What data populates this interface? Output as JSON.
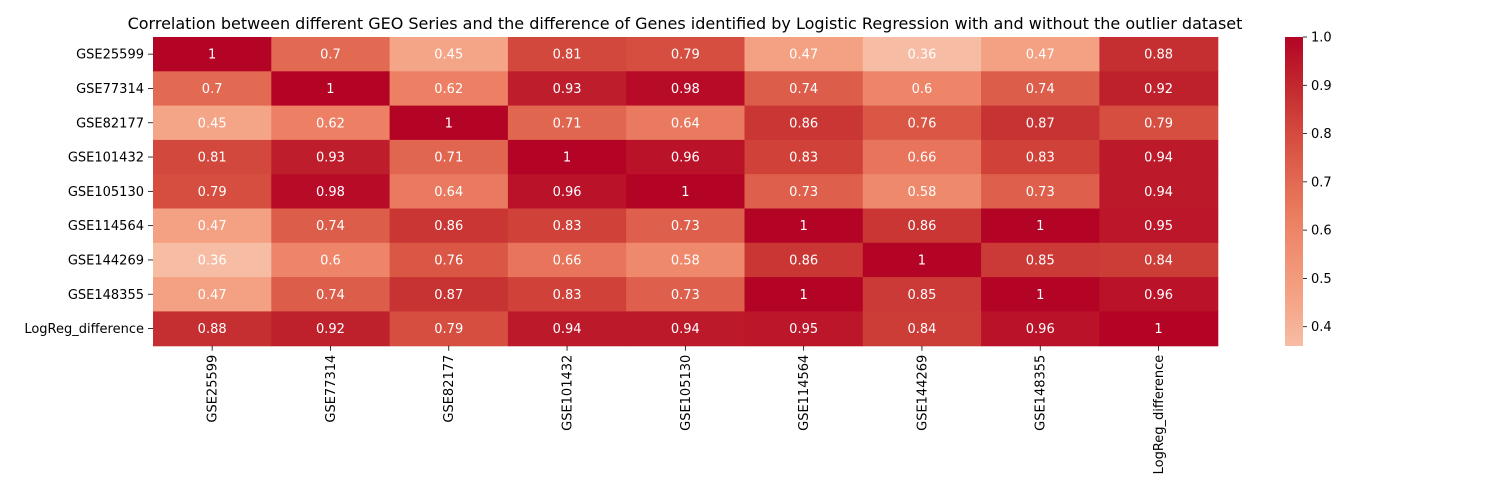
{
  "chart_data": {
    "type": "heatmap",
    "title": "Correlation between different GEO Series and the difference of Genes identified by Logistic Regression with and without the outlier dataset",
    "rows": [
      "GSE25599",
      "GSE77314",
      "GSE82177",
      "GSE101432",
      "GSE105130",
      "GSE114564",
      "GSE144269",
      "GSE148355",
      "LogReg_difference"
    ],
    "columns": [
      "GSE25599",
      "GSE77314",
      "GSE82177",
      "GSE101432",
      "GSE105130",
      "GSE114564",
      "GSE144269",
      "GSE148355",
      "LogReg_difference"
    ],
    "values": [
      [
        1,
        0.7,
        0.45,
        0.81,
        0.79,
        0.47,
        0.36,
        0.47,
        0.88
      ],
      [
        0.7,
        1,
        0.62,
        0.93,
        0.98,
        0.74,
        0.6,
        0.74,
        0.92
      ],
      [
        0.45,
        0.62,
        1,
        0.71,
        0.64,
        0.86,
        0.76,
        0.87,
        0.79
      ],
      [
        0.81,
        0.93,
        0.71,
        1,
        0.96,
        0.83,
        0.66,
        0.83,
        0.94
      ],
      [
        0.79,
        0.98,
        0.64,
        0.96,
        1,
        0.73,
        0.58,
        0.73,
        0.94
      ],
      [
        0.47,
        0.74,
        0.86,
        0.83,
        0.73,
        1,
        0.86,
        1,
        0.95
      ],
      [
        0.36,
        0.6,
        0.76,
        0.66,
        0.58,
        0.86,
        1,
        0.85,
        0.84
      ],
      [
        0.47,
        0.74,
        0.87,
        0.83,
        0.73,
        1,
        0.85,
        1,
        0.96
      ],
      [
        0.88,
        0.92,
        0.79,
        0.94,
        0.94,
        0.95,
        0.84,
        0.96,
        1
      ]
    ],
    "colormap": "coolwarm",
    "vmin": 0.36,
    "vmax": 1.0,
    "colorbar_ticks": [
      "0.4",
      "0.5",
      "0.6",
      "0.7",
      "0.8",
      "0.9",
      "1.0"
    ],
    "annotated": true
  }
}
